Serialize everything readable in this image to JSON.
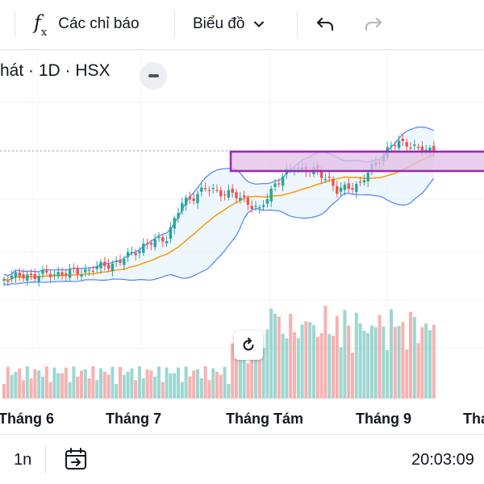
{
  "toolbar": {
    "indicators_label": "Các chỉ báo",
    "chart_type_label": "Biểu đồ",
    "icons": [
      "fx-icon",
      "chevron-down-icon",
      "undo-icon",
      "redo-icon"
    ]
  },
  "legend": {
    "symbol_text": "hát · 1D · HSX"
  },
  "colors": {
    "up": "#26a69a",
    "down": "#ef5350",
    "bollinger_band": "#2962ff",
    "bollinger_fill": "#e3f2fd",
    "basis_line": "#ff9800",
    "zone_border": "#9c27b0",
    "zone_fill": "#e1bee7"
  },
  "time_axis": {
    "labels": [
      "Tháng 6",
      "Tháng 7",
      "Tháng Tám",
      "Tháng 9",
      "Tha"
    ]
  },
  "bottom_bar": {
    "interval": "1n",
    "clock": "20:03:09"
  }
}
